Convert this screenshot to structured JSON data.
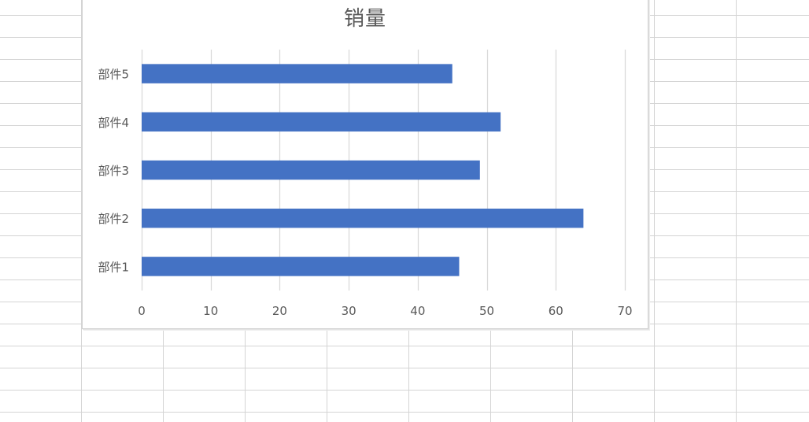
{
  "sheet": {
    "grid_color": "#d4d4d4"
  },
  "chart_data": {
    "type": "bar",
    "orientation": "horizontal",
    "title": "销量",
    "categories": [
      "部件1",
      "部件2",
      "部件3",
      "部件4",
      "部件5"
    ],
    "values": [
      46,
      64,
      49,
      52,
      45
    ],
    "xlim": [
      0,
      70
    ],
    "xticks": [
      0,
      10,
      20,
      30,
      40,
      50,
      60,
      70
    ],
    "xlabel": "",
    "ylabel": "",
    "grid": true,
    "legend": "none",
    "bar_color": "#4472c4",
    "gridline_color": "#d9d9d9",
    "text_color": "#595959"
  }
}
